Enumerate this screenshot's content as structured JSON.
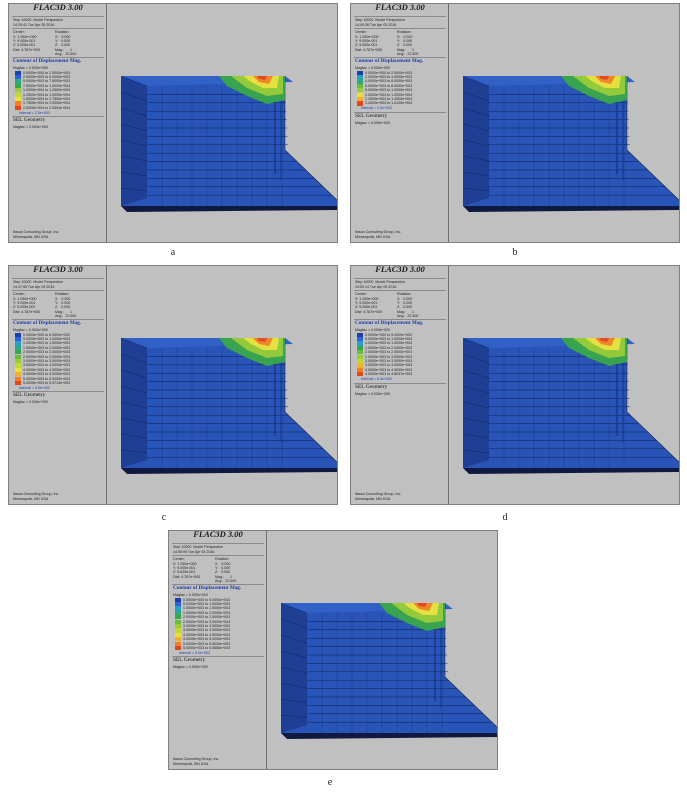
{
  "panels": [
    {
      "caption": "a",
      "title": "FLAC3D 3.00",
      "step": "Step 10000  Model Perspective",
      "time": "14:29:41 Tue Apr 05 2016",
      "center_label": "Center:",
      "rotation_label": "Rotation:",
      "cx": "X: 1.050e+000",
      "cy": "Y: 9.000e-001",
      "cz": "Z: 5.000e-001",
      "dist": "Dist: 4.787e+000",
      "rx": "X:   0.000",
      "ry": "Y:   0.000",
      "rz": "Z:   0.000",
      "mag": "Mag.:      1",
      "ang": "Ang.:  22.500",
      "contour_title": "Contour of Displacement Mag.",
      "magfac": "Magfac = 0.000e+000",
      "legend": [
        "0.0000e+000 to 2.5000e+003",
        "2.5000e+003 to 5.0000e+003",
        "5.0000e+003 to 7.5000e+003",
        "7.5000e+003 to 1.0000e+004",
        "1.0000e+004 to 1.2500e+004",
        "1.2500e+004 to 1.5000e+004",
        "1.5000e+004 to 1.7500e+004",
        "1.7500e+004 to 2.0000e+004",
        "2.0000e+004 to 2.0591e+004"
      ],
      "interval": "Interval = 2.5e+003",
      "sel": "SEL Geometry",
      "sel_magfac": "Magfac = 0.000e+000",
      "company1": "Itasca Consulting Group, Inc.",
      "company2": "Minneapolis, MN  USA"
    },
    {
      "caption": "b",
      "title": "FLAC3D 3.00",
      "step": "Step 10000  Model Perspective",
      "time": "14:40:36 Tue Apr 05 2016",
      "center_label": "Center:",
      "rotation_label": "Rotation:",
      "cx": "X: 1.050e+000",
      "cy": "Y: 9.000e-001",
      "cz": "Z: 5.000e-001",
      "dist": "Dist: 4.787e+000",
      "rx": "X:   0.000",
      "ry": "Y:   0.000",
      "rz": "Z:   0.000",
      "mag": "Mag.:      1",
      "ang": "Ang.:  22.500",
      "contour_title": "Contour of Displacement Mag.",
      "magfac": "Magfac = 0.000e+000",
      "legend": [
        "0.0000e+000 to 2.0000e+003",
        "2.0000e+003 to 4.0000e+003",
        "4.0000e+003 to 6.0000e+003",
        "6.0000e+003 to 8.0000e+003",
        "8.0000e+003 to 1.0000e+004",
        "1.0000e+004 to 1.2000e+004",
        "1.2000e+004 to 1.4000e+004",
        "1.4000e+004 to 1.6125e+004"
      ],
      "interval": "Interval = 2.0e+003",
      "sel": "SEL Geometry",
      "sel_magfac": "Magfac = 0.000e+000",
      "company1": "Itasca Consulting Group, Inc.",
      "company2": "Minneapolis, MN  USA"
    },
    {
      "caption": "c",
      "title": "FLAC3D 3.00",
      "step": "Step 10000  Model Perspective",
      "time": "14:47:55 Tue Apr 05 2016",
      "center_label": "Center:",
      "rotation_label": "Rotation:",
      "cx": "X: 1.050e+000",
      "cy": "Y: 9.000e-001",
      "cz": "Z: 5.000e-001",
      "dist": "Dist: 4.787e+000",
      "rx": "X:   0.000",
      "ry": "Y:   0.000",
      "rz": "Z:   0.000",
      "mag": "Mag.:      1",
      "ang": "Ang.:  22.500",
      "contour_title": "Contour of Displacement Mag.",
      "magfac": "Magfac = 0.000e+000",
      "legend": [
        "0.0000e+000 to 5.0000e+002",
        "5.0000e+002 to 1.0000e+003",
        "1.0000e+003 to 1.5000e+003",
        "1.5000e+003 to 2.0000e+003",
        "2.0000e+003 to 2.5000e+003",
        "2.5000e+003 to 3.0000e+003",
        "3.0000e+003 to 3.5000e+003",
        "3.5000e+003 to 4.0000e+003",
        "4.0000e+003 to 4.5000e+003",
        "4.5000e+003 to 5.0000e+003",
        "5.0000e+003 to 5.5000e+003",
        "5.5000e+003 to 5.5714e+003"
      ],
      "interval": "Interval = 5.0e+002",
      "sel": "SEL Geometry",
      "sel_magfac": "Magfac = 0.000e+000",
      "company1": "Itasca Consulting Group, Inc.",
      "company2": "Minneapolis, MN  USA"
    },
    {
      "caption": "d",
      "title": "FLAC3D 3.00",
      "step": "Step 10000  Model Perspective",
      "time": "14:50:14 Tue Apr 05 2016",
      "center_label": "Center:",
      "rotation_label": "Rotation:",
      "cx": "X: 1.050e+000",
      "cy": "Y: 9.000e-001",
      "cz": "Z: 5.000e-001",
      "dist": "Dist: 4.787e+000",
      "rx": "X:   0.000",
      "ry": "Y:   0.000",
      "rz": "Z:   0.000",
      "mag": "Mag.:      1",
      "ang": "Ang.:  22.500",
      "contour_title": "Contour of Displacement Mag.",
      "magfac": "Magfac = 0.000e+000",
      "legend": [
        "0.0000e+000 to 5.0000e+002",
        "5.0000e+002 to 1.0000e+003",
        "1.0000e+003 to 1.5000e+003",
        "1.5000e+003 to 2.0000e+003",
        "2.0000e+003 to 2.5000e+003",
        "2.5000e+003 to 3.0000e+003",
        "3.0000e+003 to 3.5000e+003",
        "3.5000e+003 to 4.0000e+003",
        "4.0000e+003 to 4.5000e+003",
        "4.5000e+003 to 4.8037e+003"
      ],
      "interval": "Interval = 5.0e+002",
      "sel": "SEL Geometry",
      "sel_magfac": "Magfac = 0.000e+000",
      "company1": "Itasca Consulting Group, Inc.",
      "company2": "Minneapolis, MN  USA"
    },
    {
      "caption": "e",
      "title": "FLAC3D 3.00",
      "step": "Step 10000  Model Perspective",
      "time": "14:55:09 Tue Apr 05 2016",
      "center_label": "Center:",
      "rotation_label": "Rotation:",
      "cx": "X: 1.050e+000",
      "cy": "Y: 9.000e-001",
      "cz": "Z: 5.623e-001",
      "dist": "Dist: 4.787e+000",
      "rx": "X:   0.000",
      "ry": "Y:   0.000",
      "rz": "Z:   0.000",
      "mag": "Mag.:      1",
      "ang": "Ang.:  22.500",
      "contour_title": "Contour of Displacement Mag.",
      "magfac": "Magfac = 0.000e+000",
      "legend": [
        "0.0000e+000 to 5.0000e+002",
        "5.0000e+002 to 1.0000e+003",
        "1.0000e+003 to 1.5000e+003",
        "1.5000e+003 to 2.0000e+003",
        "2.0000e+003 to 2.5000e+003",
        "2.5000e+003 to 3.0000e+003",
        "3.0000e+003 to 3.5000e+003",
        "3.5000e+003 to 4.0000e+003",
        "4.0000e+003 to 4.5000e+003",
        "4.5000e+003 to 5.0000e+003",
        "5.0000e+003 to 5.5000e+003",
        "5.5000e+003 to 5.5556e+003"
      ],
      "interval": "Interval = 5.0e+002",
      "sel": "SEL Geometry",
      "sel_magfac": "Magfac = 0.000e+000",
      "company1": "Itasca Consulting Group, Inc.",
      "company2": "Minneapolis, MN  USA"
    }
  ],
  "colors": {
    "panel_bg": "#c0c0c0",
    "mesh_blue": "#2a55b8",
    "mesh_line": "#0c1f5c",
    "contour_title": "#1a3aa8",
    "scale": [
      "#1c3ea8",
      "#2f62d8",
      "#2aa0c8",
      "#30a880",
      "#39a84a",
      "#6cbd3c",
      "#98cc3a",
      "#c0d838",
      "#e8e040",
      "#f0b030",
      "#f08028",
      "#e04820"
    ]
  }
}
